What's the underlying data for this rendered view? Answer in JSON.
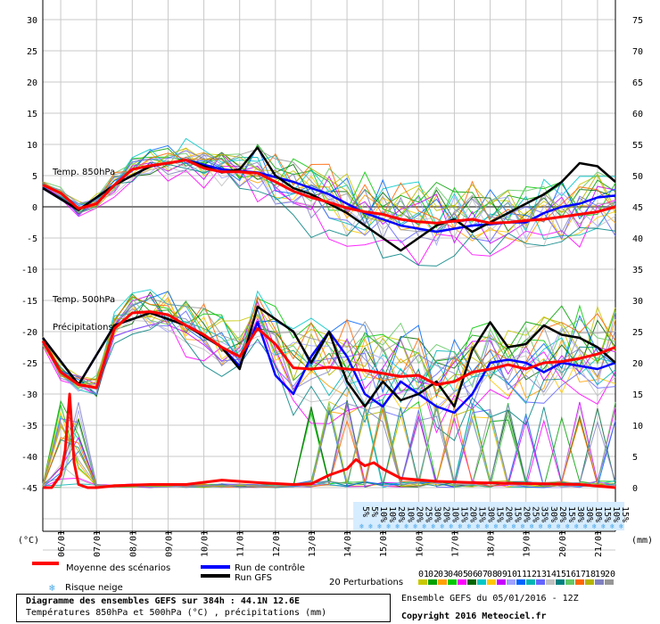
{
  "chart_data": {
    "type": "line",
    "title": "Diagramme des ensembles GEFS sur 384h : 44.1N 12.6E",
    "subtitle": "Températures 850hPa et 500hPa (°C) , précipitations (mm)",
    "left_axis_unit": "(°C)",
    "right_axis_unit": "(mm)",
    "ylim_left": [
      -45,
      30
    ],
    "ylim_right": [
      0,
      75
    ],
    "left_ticks": [
      30,
      25,
      20,
      15,
      10,
      5,
      0,
      -5,
      -10,
      -15,
      -20,
      -25,
      -30,
      -35,
      -40,
      -45
    ],
    "right_ticks": [
      75,
      70,
      65,
      60,
      55,
      50,
      45,
      40,
      35,
      30,
      25,
      20,
      15,
      10,
      5,
      0
    ],
    "x_unit": "hours from 05/01 12Z",
    "xlim": [
      0,
      384
    ],
    "date_labels": [
      "06/01",
      "07/01",
      "08/01",
      "09/01",
      "10/01",
      "11/01",
      "12/01",
      "13/01",
      "14/01",
      "15/01",
      "16/01",
      "17/01",
      "18/01",
      "19/01",
      "20/01",
      "21/01"
    ],
    "annotations": [
      "Temp. 850hPa",
      "Temp. 500hPa",
      "Précipitations"
    ],
    "snow_risk_percent": [
      "5%",
      "5%",
      "10%",
      "10%",
      "20%",
      "10%",
      "20%",
      "25%",
      "30%",
      "20%",
      "10%",
      "15%",
      "20%",
      "15%",
      "30%",
      "15%",
      "20%",
      "15%",
      "20%",
      "25%",
      "35%",
      "30%",
      "20%",
      "15%",
      "30%",
      "30%",
      "10%",
      "15%",
      "10%",
      "15%"
    ],
    "snow_risk_start_hour": 210,
    "snow_risk_step_hours": 6,
    "series": [
      {
        "name": "Moyenne des scénarios",
        "color": "#ff0000",
        "x850": [
          0,
          12,
          24,
          36,
          48,
          60,
          72,
          84,
          96,
          108,
          120,
          132,
          144,
          156,
          168,
          180,
          192,
          204,
          216,
          228,
          240,
          252,
          264,
          276,
          288,
          300,
          312,
          324,
          336,
          348,
          360,
          372,
          384
        ],
        "t850": [
          3.5,
          2.2,
          -0.3,
          0.5,
          3.5,
          6.0,
          6.6,
          7.0,
          7.5,
          6.2,
          5.6,
          5.6,
          5.4,
          4.0,
          2.5,
          1.5,
          0.7,
          -0.2,
          -0.8,
          -1.2,
          -2.0,
          -2.4,
          -2.6,
          -2.3,
          -2.0,
          -2.6,
          -2.5,
          -2.2,
          -2.0,
          -1.6,
          -1.2,
          -0.8,
          0.0
        ],
        "x500": [
          0,
          12,
          24,
          36,
          48,
          60,
          72,
          84,
          96,
          108,
          120,
          132,
          144,
          156,
          168,
          180,
          192,
          204,
          216,
          228,
          240,
          252,
          264,
          276,
          288,
          300,
          312,
          324,
          336,
          348,
          360,
          372,
          384
        ],
        "t500": [
          -21.5,
          -26.5,
          -28.5,
          -29.0,
          -19.5,
          -17.0,
          -16.8,
          -17.3,
          -19.0,
          -20.5,
          -22.5,
          -24.0,
          -19.5,
          -22.0,
          -25.8,
          -26.0,
          -25.7,
          -26.0,
          -26.2,
          -26.7,
          -27.2,
          -27.0,
          -28.5,
          -28.0,
          -26.5,
          -26.0,
          -25.3,
          -26.0,
          -25.0,
          -24.8,
          -24.3,
          -23.6,
          -22.5
        ],
        "xprec": [
          0,
          6,
          12,
          15,
          18,
          21,
          24,
          30,
          36,
          48,
          72,
          96,
          120,
          144,
          168,
          180,
          192,
          198,
          204,
          210,
          216,
          222,
          228,
          240,
          264,
          288,
          312,
          336,
          360,
          384
        ],
        "prec": [
          0,
          0,
          2,
          6,
          15,
          4,
          0.5,
          0,
          0,
          0.3,
          0.5,
          0.5,
          1.2,
          0.8,
          0.5,
          0.6,
          2.0,
          2.5,
          3.0,
          4.5,
          3.5,
          4.0,
          3.0,
          1.5,
          1.0,
          0.8,
          0.7,
          0.6,
          0.5,
          0
        ]
      },
      {
        "name": "Run de contrôle",
        "color": "#0000ff",
        "x850": [
          0,
          24,
          48,
          72,
          96,
          120,
          144,
          168,
          192,
          204,
          216,
          228,
          240,
          252,
          264,
          276,
          288,
          300,
          312,
          324,
          336,
          348,
          360,
          372,
          384
        ],
        "t850": [
          3.0,
          -0.5,
          3.5,
          6.5,
          7.5,
          6.0,
          5.5,
          4.0,
          2.0,
          0.5,
          -1.0,
          -2.0,
          -3.0,
          -3.5,
          -4.0,
          -3.5,
          -3.0,
          -2.8,
          -2.5,
          -2.5,
          -1.0,
          0.0,
          0.5,
          1.5,
          1.8
        ],
        "x500": [
          0,
          24,
          48,
          72,
          96,
          120,
          132,
          144,
          156,
          168,
          180,
          192,
          204,
          216,
          228,
          240,
          252,
          264,
          276,
          288,
          300,
          312,
          324,
          336,
          348,
          360,
          372,
          384
        ],
        "t500": [
          -21.0,
          -28.5,
          -19.0,
          -17.0,
          -19.0,
          -22.5,
          -25.5,
          -18.5,
          -27.0,
          -30.0,
          -24.0,
          -20.0,
          -24.0,
          -30.0,
          -32.0,
          -28.0,
          -30.0,
          -32.0,
          -33.0,
          -30.0,
          -25.0,
          -24.5,
          -25.0,
          -26.5,
          -25.0,
          -25.5,
          -26.0,
          -25.0
        ]
      },
      {
        "name": "Run GFS",
        "color": "#000000",
        "x850": [
          0,
          24,
          48,
          72,
          96,
          120,
          132,
          144,
          156,
          168,
          180,
          192,
          204,
          216,
          228,
          240,
          252,
          264,
          276,
          288,
          300,
          312,
          324,
          336,
          348,
          360,
          372,
          384
        ],
        "t850": [
          3.0,
          -0.5,
          3.5,
          6.5,
          7.5,
          5.5,
          6.0,
          9.5,
          5.0,
          3.0,
          2.0,
          0.5,
          -1.0,
          -3.0,
          -5.0,
          -7.0,
          -5.0,
          -3.0,
          -2.0,
          -4.0,
          -2.5,
          -1.0,
          0.5,
          2.0,
          4.0,
          7.0,
          6.5,
          4.0
        ],
        "x500": [
          0,
          24,
          48,
          72,
          96,
          120,
          132,
          144,
          156,
          168,
          180,
          192,
          204,
          216,
          228,
          240,
          252,
          264,
          276,
          288,
          300,
          312,
          324,
          336,
          348,
          360,
          372,
          384
        ],
        "t500": [
          -21.0,
          -28.5,
          -19.0,
          -17.0,
          -19.0,
          -22.5,
          -26.0,
          -16.0,
          -18.0,
          -20.0,
          -25.0,
          -20.0,
          -28.0,
          -32.0,
          -28.0,
          -31.0,
          -30.0,
          -28.0,
          -32.0,
          -23.0,
          -18.5,
          -22.5,
          -22.0,
          -19.0,
          -20.5,
          -21.0,
          -22.5,
          -25.0
        ]
      }
    ]
  },
  "legend": {
    "mean_label": "Moyenne des scénarios",
    "control_label": "Run de contrôle",
    "gfs_label": "Run GFS",
    "snow_label": "Risque neige",
    "perturbations_label": "20 Perturbations",
    "perturbation_ids": [
      "01",
      "02",
      "03",
      "04",
      "05",
      "06",
      "07",
      "08",
      "09",
      "10",
      "11",
      "12",
      "13",
      "14",
      "15",
      "16",
      "17",
      "18",
      "19",
      "20"
    ],
    "perturbation_colors": [
      "#c8c800",
      "#00a000",
      "#ffa000",
      "#00c800",
      "#ff00ff",
      "#006400",
      "#00c8c8",
      "#ffc800",
      "#c800ff",
      "#a0a0ff",
      "#0064ff",
      "#00b4b4",
      "#6464ff",
      "#c0c0c0",
      "#008080",
      "#64c864",
      "#ff6400",
      "#b4b400",
      "#8080c0",
      "#969696"
    ]
  },
  "info": {
    "title": "Diagramme des ensembles GEFS sur 384h : 44.1N 12.6E",
    "subtitle": "Températures 850hPa et 500hPa (°C) , précipitations (mm)",
    "run": "Ensemble GEFS du 05/01/2016 - 12Z",
    "copyright": "Copyright 2016 Meteociel.fr"
  }
}
